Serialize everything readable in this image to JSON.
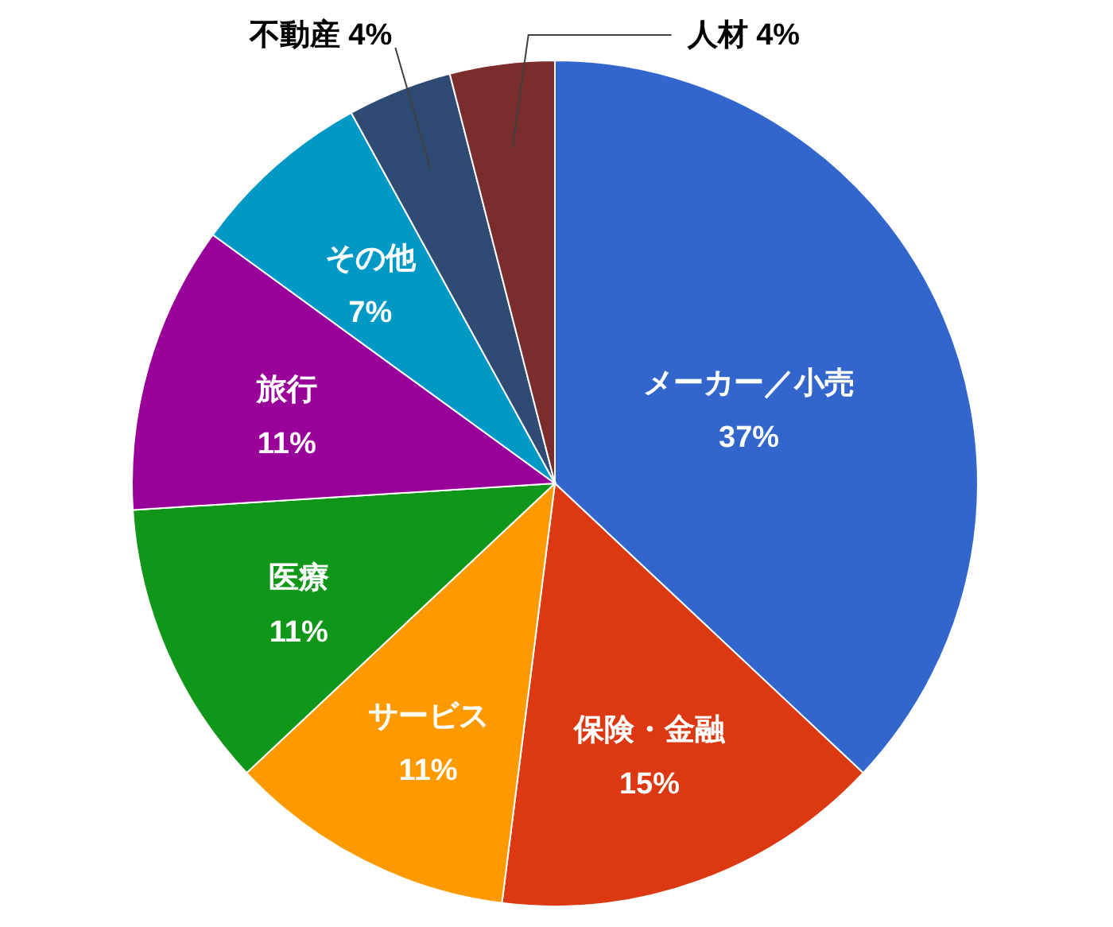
{
  "chart_data": {
    "type": "pie",
    "categories": [
      "メーカー／小売",
      "保険・金融",
      "サービス",
      "医療",
      "旅行",
      "その他",
      "不動産",
      "人材"
    ],
    "values": [
      37,
      15,
      11,
      11,
      11,
      7,
      4,
      4
    ],
    "value_labels": [
      "37%",
      "15%",
      "11%",
      "11%",
      "11%",
      "7%",
      "4%",
      "4%"
    ],
    "colors": [
      "#3366cc",
      "#dc3912",
      "#ff9900",
      "#109618",
      "#990099",
      "#0099c6",
      "#2f4a73",
      "#7b2c2c"
    ]
  }
}
